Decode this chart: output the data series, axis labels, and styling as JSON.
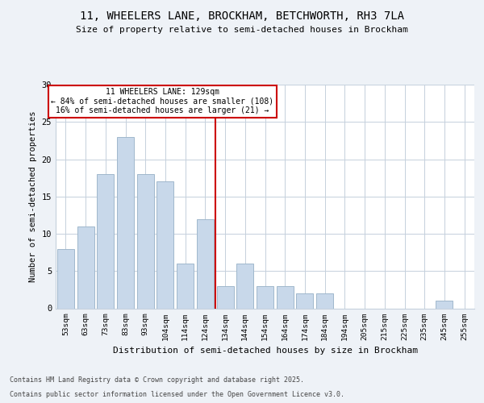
{
  "title1": "11, WHEELERS LANE, BROCKHAM, BETCHWORTH, RH3 7LA",
  "title2": "Size of property relative to semi-detached houses in Brockham",
  "xlabel": "Distribution of semi-detached houses by size in Brockham",
  "ylabel": "Number of semi-detached properties",
  "categories": [
    "53sqm",
    "63sqm",
    "73sqm",
    "83sqm",
    "93sqm",
    "104sqm",
    "114sqm",
    "124sqm",
    "134sqm",
    "144sqm",
    "154sqm",
    "164sqm",
    "174sqm",
    "184sqm",
    "194sqm",
    "205sqm",
    "215sqm",
    "225sqm",
    "235sqm",
    "245sqm",
    "255sqm"
  ],
  "values": [
    8,
    11,
    18,
    23,
    18,
    17,
    6,
    12,
    3,
    6,
    3,
    3,
    2,
    2,
    0,
    0,
    0,
    0,
    0,
    1,
    0
  ],
  "bar_color": "#c8d8ea",
  "bar_edge_color": "#a0b8cc",
  "annotation_line1": "11 WHEELERS LANE: 129sqm",
  "annotation_line2": "← 84% of semi-detached houses are smaller (108)",
  "annotation_line3": "16% of semi-detached houses are larger (21) →",
  "ylim": [
    0,
    30
  ],
  "yticks": [
    0,
    5,
    10,
    15,
    20,
    25,
    30
  ],
  "footer1": "Contains HM Land Registry data © Crown copyright and database right 2025.",
  "footer2": "Contains public sector information licensed under the Open Government Licence v3.0.",
  "bg_color": "#eef2f7",
  "plot_bg_color": "#ffffff",
  "annotation_box_edge": "#cc0000",
  "vline_color": "#cc0000",
  "grid_color": "#c5d0dc"
}
